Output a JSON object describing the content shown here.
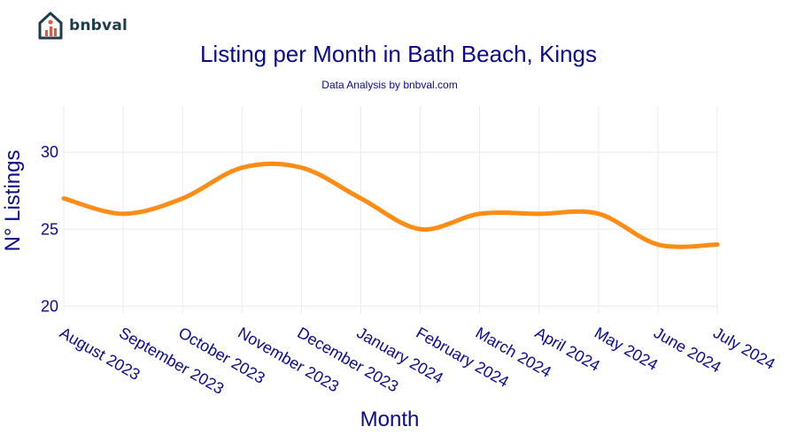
{
  "brand": {
    "name": "bnbval"
  },
  "chart_data": {
    "type": "line",
    "title": "Listing per Month in Bath Beach, Kings",
    "subtitle": "Data Analysis by bnbval.com",
    "xlabel": "Month",
    "ylabel": "N° Listings",
    "categories": [
      "August 2023",
      "September 2023",
      "October 2023",
      "November 2023",
      "December 2023",
      "January 2024",
      "February 2024",
      "March 2024",
      "April 2024",
      "May 2024",
      "June 2024",
      "July 2024"
    ],
    "series": [
      {
        "values": [
          27,
          26,
          27,
          29,
          29,
          27,
          25,
          26,
          26,
          26,
          24,
          24
        ]
      }
    ],
    "ylim": [
      19.5,
      33
    ],
    "yticks": [
      20,
      25,
      30
    ],
    "grid": true,
    "line_color": "#ff8c14"
  }
}
